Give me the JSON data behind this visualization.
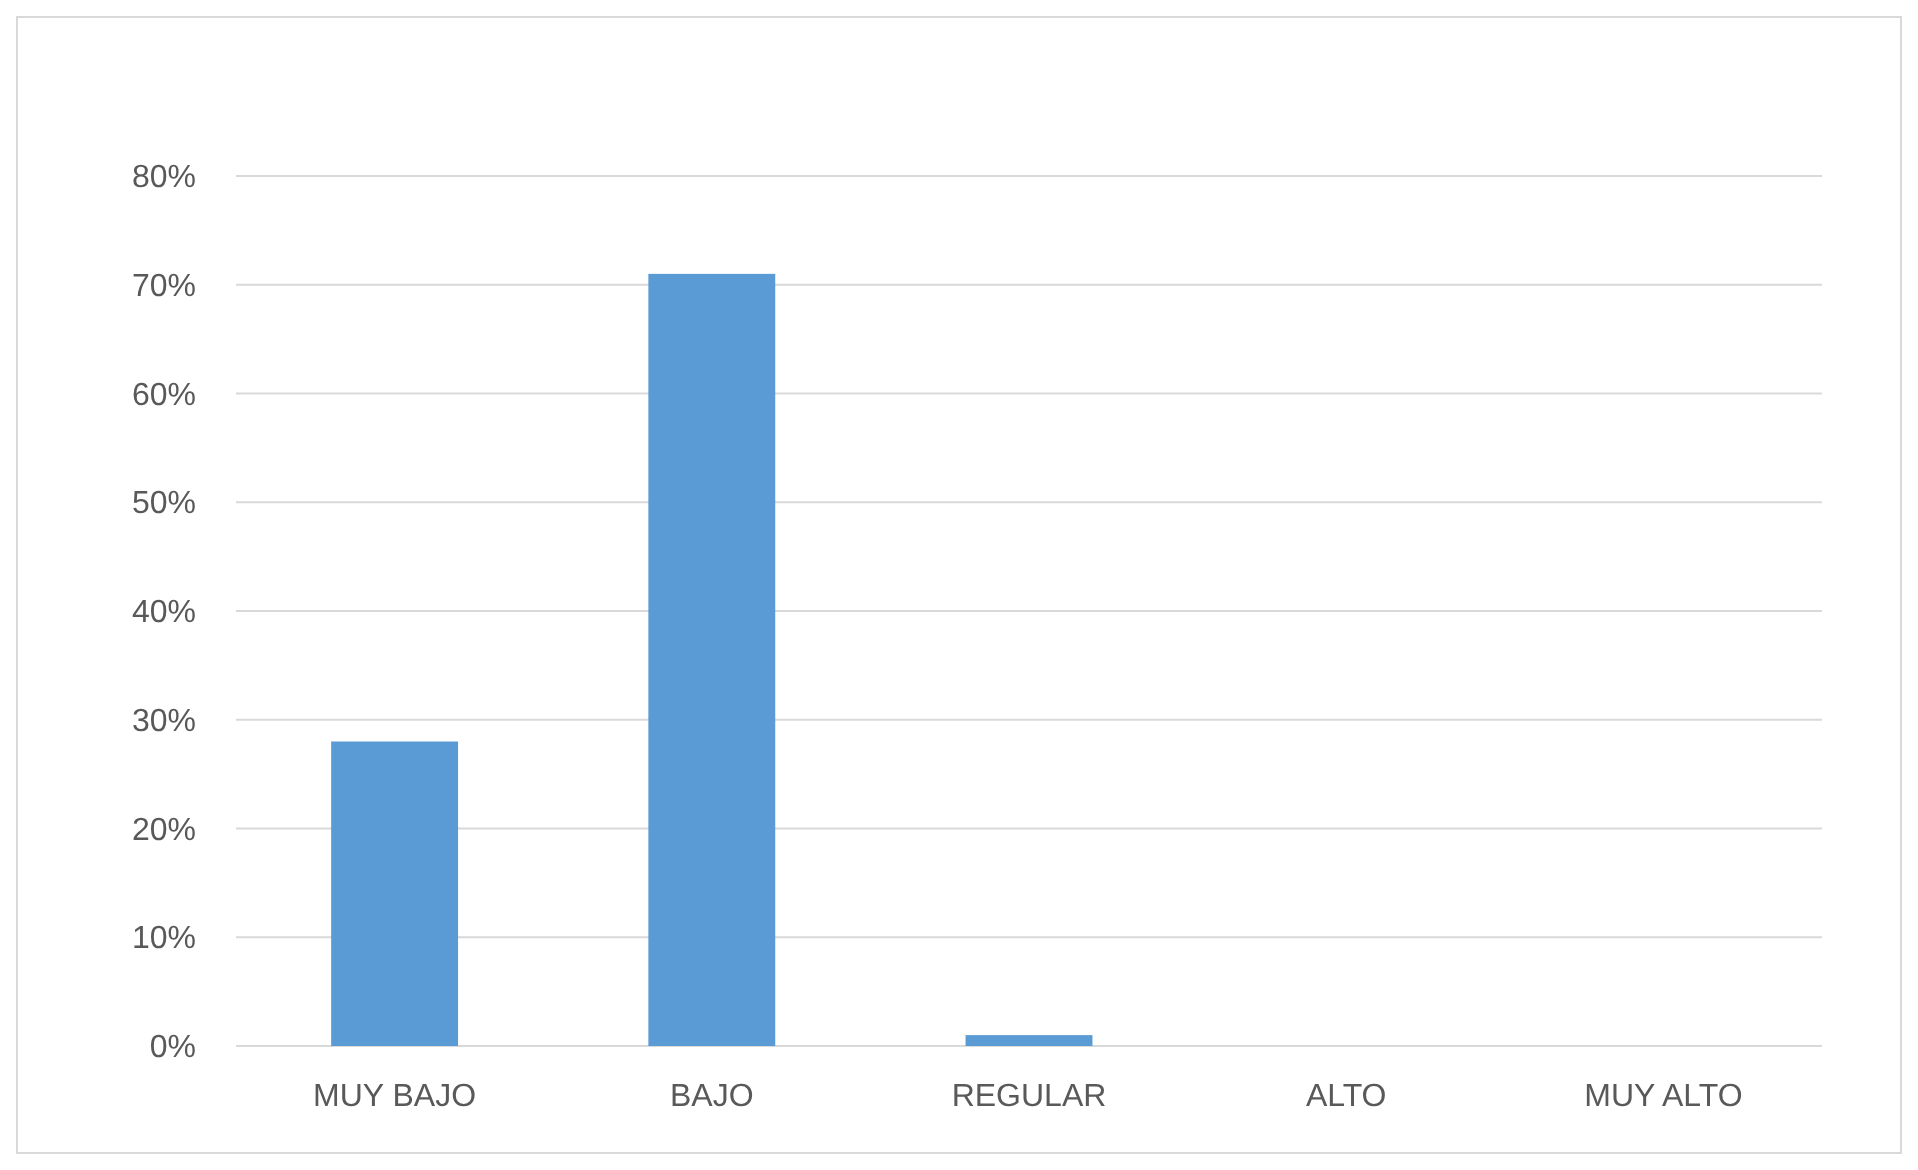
{
  "chart_data": {
    "type": "bar",
    "categories": [
      "MUY BAJO",
      "BAJO",
      "REGULAR",
      "ALTO",
      "MUY ALTO"
    ],
    "values": [
      28,
      71,
      1,
      0,
      0
    ],
    "color": "#5b9bd5",
    "ylim": [
      0,
      80
    ],
    "yticks": [
      {
        "value": 0,
        "label": "0%"
      },
      {
        "value": 10,
        "label": "10%"
      },
      {
        "value": 20,
        "label": "20%"
      },
      {
        "value": 30,
        "label": "30%"
      },
      {
        "value": 40,
        "label": "40%"
      },
      {
        "value": 50,
        "label": "50%"
      },
      {
        "value": 60,
        "label": "60%"
      },
      {
        "value": 70,
        "label": "70%"
      },
      {
        "value": 80,
        "label": "80%"
      }
    ],
    "grid": true
  }
}
